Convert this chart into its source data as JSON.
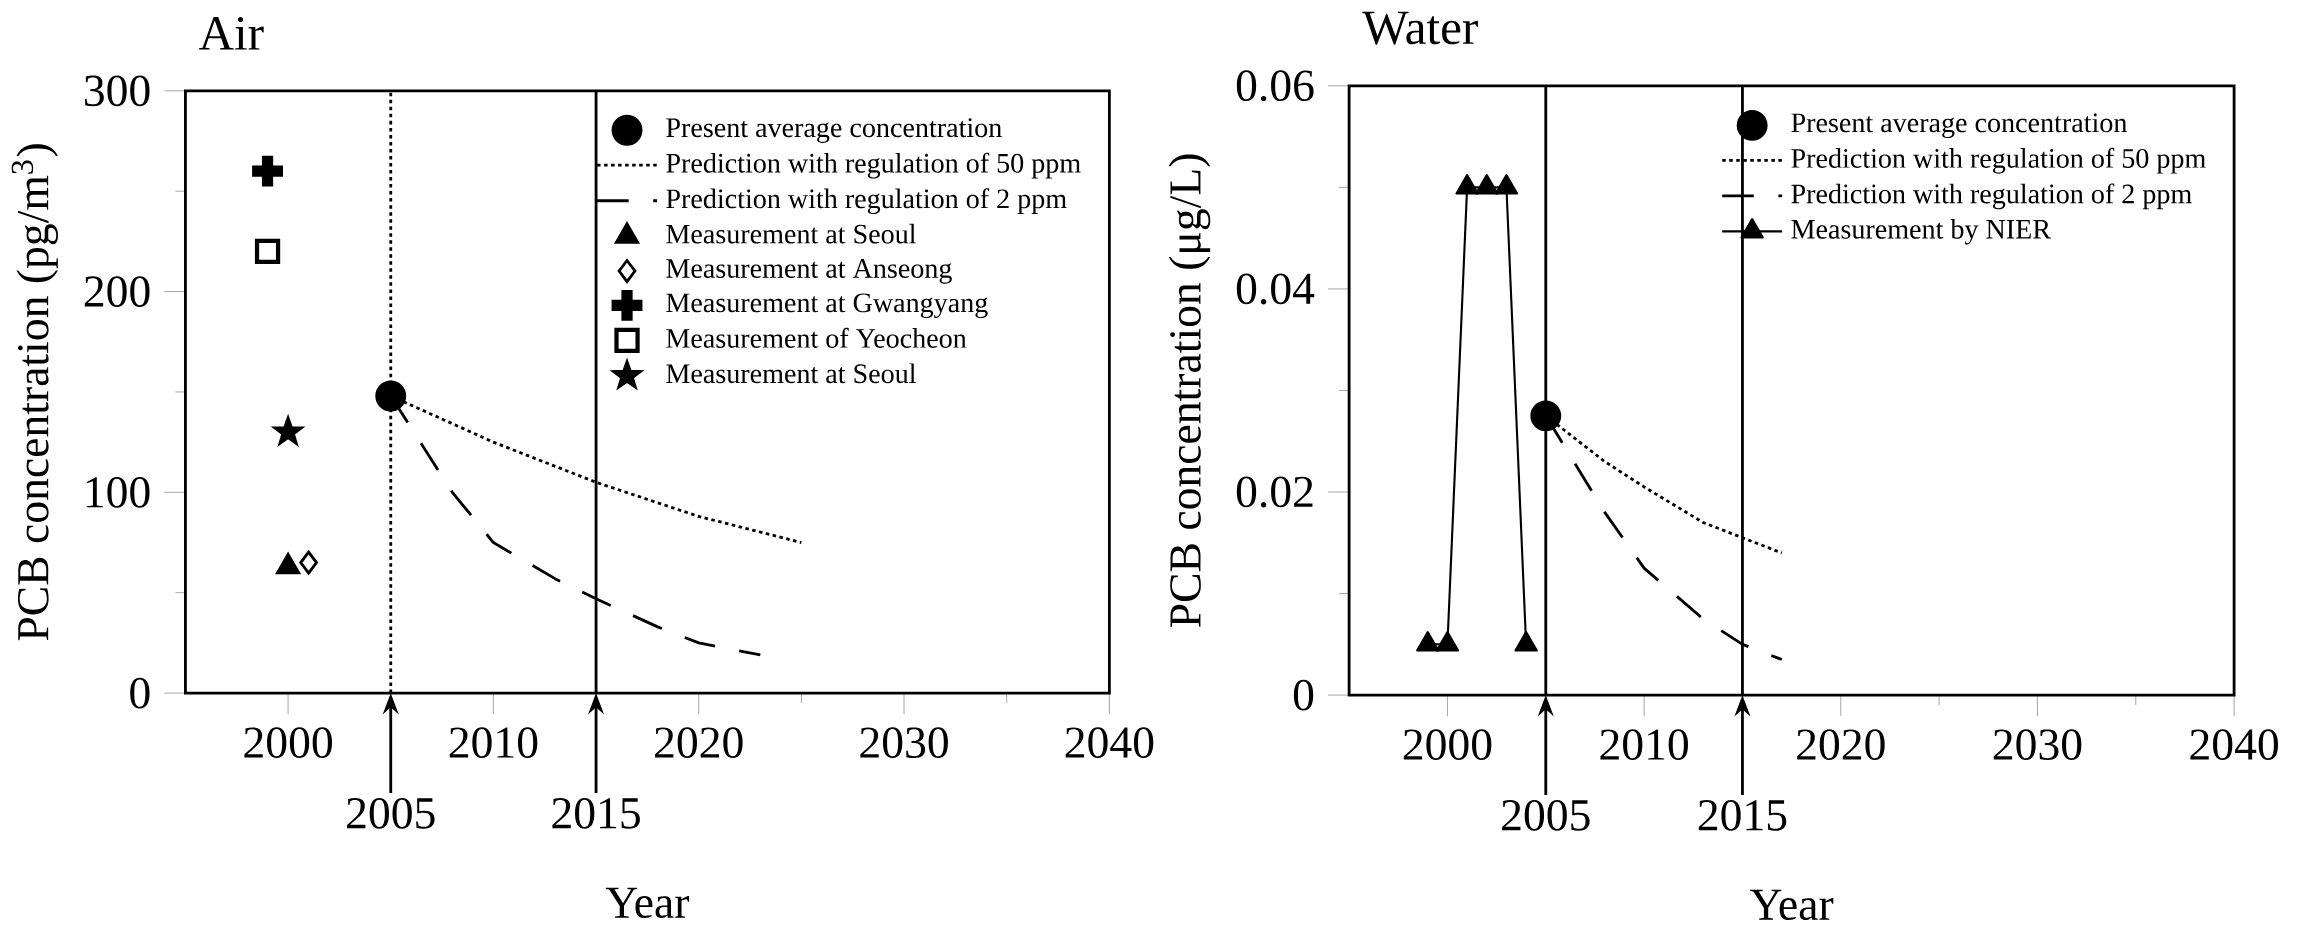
{
  "chart_data": [
    {
      "type": "line",
      "title": "Air",
      "xlabel": "Year",
      "ylabel": "PCB concentration (pg/m$^{3}$)",
      "xlim": [
        1995,
        2040
      ],
      "xticks": [
        2000,
        2010,
        2020,
        2030,
        2040
      ],
      "ylim": [
        0,
        300
      ],
      "yticks": [
        0,
        100,
        200,
        300
      ],
      "legend": "top right",
      "ref_lines": [
        {
          "axis": "x",
          "value": 2005,
          "label": "2005",
          "line_style": "dotted",
          "color": "#000000"
        },
        {
          "axis": "x",
          "value": 2015,
          "label": "2015",
          "line_style": "solid",
          "color": "#000000"
        }
      ],
      "series": [
        {
          "name": "Present average concentration",
          "type": "scatter",
          "marker": "circle",
          "color": "#000000",
          "x": [
            2005
          ],
          "values": [
            148
          ]
        },
        {
          "name": "Prediction with regulation of 50 ppm",
          "line_style": "dotted",
          "color": "#000000",
          "x": [
            2005,
            2010,
            2015,
            2020,
            2025
          ],
          "values": [
            148,
            125,
            105,
            88,
            75
          ]
        },
        {
          "name": "Prediction with regulation of 2 ppm",
          "line_style": "dashed",
          "color": "#000000",
          "x": [
            2005,
            2008,
            2010,
            2013,
            2015,
            2018,
            2020,
            2023
          ],
          "values": [
            148,
            100,
            75,
            57,
            47,
            33,
            25,
            19
          ]
        },
        {
          "name": "Measurement at Seoul",
          "type": "scatter",
          "marker": "triangle",
          "color": "#000000",
          "x": [
            2000
          ],
          "values": [
            63
          ]
        },
        {
          "name": "Measurement at Anseong",
          "type": "scatter",
          "marker": "diamond",
          "color": "#000000",
          "x": [
            2001
          ],
          "values": [
            65
          ]
        },
        {
          "name": "Measurement at Gwangyang",
          "type": "scatter",
          "marker": "cross",
          "color": "#000000",
          "x": [
            1999
          ],
          "values": [
            260
          ]
        },
        {
          "name": "Measurement of Yeocheon",
          "type": "scatter",
          "marker": "square",
          "color": "#000000",
          "x": [
            1999
          ],
          "values": [
            220
          ]
        },
        {
          "name": "Measurement at Seoul",
          "type": "scatter",
          "marker": "star",
          "color": "#000000",
          "x": [
            2000
          ],
          "values": [
            130
          ]
        }
      ]
    },
    {
      "type": "line",
      "title": "Water",
      "xlabel": "Year",
      "ylabel": "PCB concentration (μg/L)",
      "xlim": [
        1995,
        2040
      ],
      "xticks": [
        2000,
        2010,
        2020,
        2030,
        2040
      ],
      "ylim": [
        0,
        0.06
      ],
      "yticks": [
        0,
        0.02,
        0.04,
        0.06
      ],
      "legend": "top right",
      "ref_lines": [
        {
          "axis": "x",
          "value": 2005,
          "label": "2005",
          "line_style": "solid",
          "color": "#000000"
        },
        {
          "axis": "x",
          "value": 2015,
          "label": "2015",
          "line_style": "solid",
          "color": "#000000"
        }
      ],
      "series": [
        {
          "name": "Present average concentration",
          "type": "scatter",
          "marker": "circle",
          "color": "#000000",
          "x": [
            2005
          ],
          "values": [
            0.0275
          ]
        },
        {
          "name": "Prediction with regulation of 50 ppm",
          "line_style": "dotted",
          "color": "#000000",
          "x": [
            2005,
            2008,
            2010,
            2013,
            2015,
            2017
          ],
          "values": [
            0.0275,
            0.023,
            0.0205,
            0.017,
            0.0155,
            0.014
          ]
        },
        {
          "name": "Prediction with regulation of 2 ppm",
          "line_style": "dashed",
          "color": "#000000",
          "x": [
            2005,
            2008,
            2010,
            2013,
            2015,
            2017
          ],
          "values": [
            0.0275,
            0.018,
            0.0125,
            0.0075,
            0.005,
            0.0035
          ]
        },
        {
          "name": "Measurement by NIER",
          "marker": "triangle",
          "line_style": "solid",
          "color": "#000000",
          "x": [
            1999,
            2000,
            2001,
            2002,
            2003,
            2004
          ],
          "values": [
            0.005,
            0.005,
            0.05,
            0.05,
            0.05,
            0.005
          ]
        }
      ]
    }
  ]
}
